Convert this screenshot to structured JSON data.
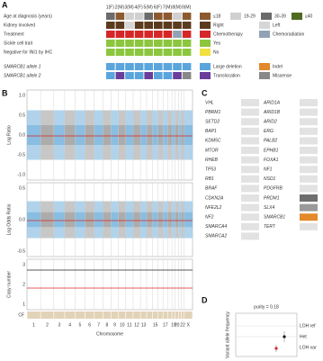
{
  "panel_a": {
    "label": "A",
    "patients": [
      "1(F)",
      "2(M)",
      "3(M)",
      "4(F)",
      "5(M)",
      "6(F)",
      "7(M)",
      "8(M)",
      "9(M)"
    ],
    "rows": [
      {
        "label": "Age at diagnosis (years)",
        "cells": [
          "30-39",
          "≤18",
          "19-29",
          "19-29",
          "30-39",
          "≤18",
          "≤18",
          "19-29",
          "≤18"
        ]
      },
      {
        "label": "Kidney involved",
        "cells": [
          "Right",
          "Right",
          "Left",
          "Right",
          "Right",
          "Right",
          "Right",
          "Right",
          "Right"
        ]
      },
      {
        "label": "Treatment",
        "cells": [
          "Chemotherapy",
          "Chemotherapy",
          "Chemotherapy",
          "Chemotherapy",
          "Chemotherapy",
          "Chemotherapy",
          "Chemotherapy",
          "Chemoradiation",
          "Chemotherapy"
        ]
      },
      {
        "label": "Sickle cell trait",
        "cells": [
          "Yes",
          "Yes",
          "Yes",
          "Yes",
          "Yes",
          "Yes",
          "Yes",
          "Yes",
          "Yes"
        ]
      },
      {
        "label": "Negative for INI1 by IHC",
        "cells": [
          "Yes",
          "Yes",
          "Yes",
          "Yes",
          "Yes",
          "Yes",
          "Yes",
          "Yes",
          "Yes"
        ]
      }
    ],
    "allele_rows": [
      {
        "label": "SMARCB1 allele 1",
        "cells": [
          "Large deletion",
          "Large deletion",
          "Large deletion",
          "Large deletion",
          "Large deletion",
          "Large deletion",
          "Large deletion",
          "Large deletion",
          "Large deletion"
        ]
      },
      {
        "label": "SMARCB1 allele 2",
        "cells": [
          "Large deletion",
          "Translocation",
          "Large deletion",
          "Large deletion",
          "Translocation",
          "Large deletion",
          "Large deletion",
          "Translocation",
          "Missense"
        ]
      }
    ],
    "legend": [
      [
        {
          "label": "≤18",
          "color": "#8c5a2e"
        },
        {
          "label": "19-29",
          "color": "#d0d0d0"
        },
        {
          "label": "30-39",
          "color": "#6b6b6b"
        },
        {
          "label": "≥40",
          "color": "#4f6b22"
        }
      ],
      [
        {
          "label": "Right",
          "color": "#5b3b1e"
        },
        {
          "label": "Left",
          "color": "#d6d6d6"
        }
      ],
      [
        {
          "label": "Chemotherapy",
          "color": "#d62728"
        },
        {
          "label": "Chemoradiation",
          "color": "#8fa3b5"
        }
      ],
      [
        {
          "label": "Yes",
          "color": "#8cc63f"
        }
      ],
      [
        {
          "label": "No",
          "color": "#f0e040"
        }
      ],
      [
        {
          "label": "Large deletion",
          "color": "#5aa5dc"
        },
        {
          "label": "Indel",
          "color": "#e3892c"
        }
      ],
      [
        {
          "label": "Translocation",
          "color": "#6a3d9a"
        },
        {
          "label": "Missense",
          "color": "#888888"
        }
      ]
    ]
  },
  "panel_b": {
    "label": "B",
    "panels": [
      {
        "ylabel": "Log Ratio",
        "yticks": [
          "1.0",
          "0.5",
          "0.0",
          "-0.5",
          "-1.0"
        ]
      },
      {
        "ylabel": "Log Odds Ratio",
        "yticks": [
          "0.5",
          "0.0",
          "-0.5"
        ]
      },
      {
        "ylabel": "Copy number",
        "yticks": [
          "3",
          "2",
          "1"
        ]
      }
    ],
    "cf_label": "CF",
    "xlabel": "Chromosome",
    "chromosomes": [
      "1",
      "2",
      "3",
      "4",
      "5",
      "6",
      "7",
      "8",
      "9",
      "10",
      "11",
      "12",
      "13",
      null,
      "15",
      null,
      "17",
      null,
      "19",
      "20",
      null,
      "22",
      "X"
    ]
  },
  "panel_c": {
    "label": "C",
    "left": [
      {
        "name": "VHL",
        "color": "#e2e2e2"
      },
      {
        "name": "PBRM1",
        "color": "#e2e2e2"
      },
      {
        "name": "SETD2",
        "color": "#e2e2e2"
      },
      {
        "name": "BAP1",
        "color": "#e2e2e2"
      },
      {
        "name": "KDM5C",
        "color": "#e2e2e2"
      },
      {
        "name": "MTOR",
        "color": "#e2e2e2"
      },
      {
        "name": "RHEB",
        "color": "#e2e2e2"
      },
      {
        "name": "TP53",
        "color": "#e2e2e2"
      },
      {
        "name": "RB1",
        "color": "#e2e2e2"
      },
      {
        "name": "BRAF",
        "color": "#e2e2e2"
      },
      {
        "name": "CDKN2A",
        "color": "#e2e2e2"
      },
      {
        "name": "NFE2L2",
        "color": "#e2e2e2"
      },
      {
        "name": "NF2",
        "color": "#e2e2e2"
      },
      {
        "name": "SMARCA4",
        "color": "#e2e2e2"
      },
      {
        "name": "SMARCA2",
        "color": "#e2e2e2"
      }
    ],
    "right": [
      {
        "name": "ARID1A",
        "color": "#e2e2e2"
      },
      {
        "name": "ARID1B",
        "color": "#e2e2e2"
      },
      {
        "name": "ARID2",
        "color": "#e2e2e2"
      },
      {
        "name": "ERG",
        "color": "#e2e2e2"
      },
      {
        "name": "PALB2",
        "color": "#e2e2e2"
      },
      {
        "name": "EPHB1",
        "color": "#e2e2e2"
      },
      {
        "name": "FOXA1",
        "color": "#e2e2e2"
      },
      {
        "name": "NF1",
        "color": "#e2e2e2"
      },
      {
        "name": "NSD1",
        "color": "#e2e2e2"
      },
      {
        "name": "PDGFRB",
        "color": "#e2e2e2"
      },
      {
        "name": "PRDM1",
        "color": "#6e6e6e"
      },
      {
        "name": "SLX4",
        "color": "#9a9a9a"
      },
      {
        "name": "SMARCB1",
        "color": "#e3892c"
      },
      {
        "name": "TERT",
        "color": "#e2e2e2"
      }
    ]
  },
  "panel_d": {
    "label": "D",
    "purity": "purity = 0.18",
    "ylabel": "Variant allele frequency",
    "labels": [
      "LOH ref",
      "Het",
      "LOH var"
    ]
  }
}
